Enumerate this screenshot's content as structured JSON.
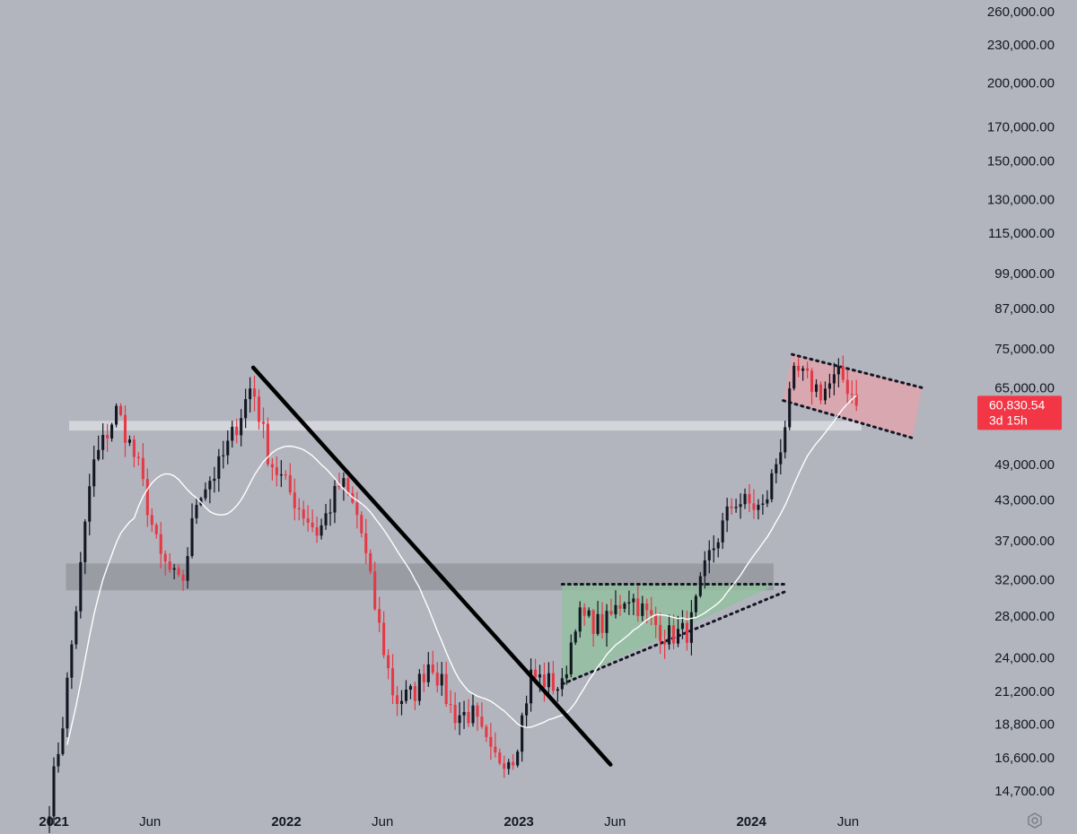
{
  "chart_data": {
    "type": "candlestick",
    "title": "",
    "xlabel": "",
    "ylabel": "",
    "scale": "log",
    "ylim": [
      14000,
      275000
    ],
    "x_ticks": [
      {
        "label": "2021",
        "date": "2021-01-01",
        "bold": true
      },
      {
        "label": "Jun",
        "date": "2021-06-01",
        "bold": false
      },
      {
        "label": "2022",
        "date": "2022-01-01",
        "bold": true
      },
      {
        "label": "Jun",
        "date": "2022-06-01",
        "bold": false
      },
      {
        "label": "2023",
        "date": "2023-01-01",
        "bold": true
      },
      {
        "label": "Jun",
        "date": "2023-06-01",
        "bold": false
      },
      {
        "label": "2024",
        "date": "2024-01-01",
        "bold": true
      },
      {
        "label": "Jun",
        "date": "2024-06-01",
        "bold": false
      }
    ],
    "y_ticks": [
      {
        "label": "260,000.00",
        "value": 260000
      },
      {
        "label": "230,000.00",
        "value": 230000
      },
      {
        "label": "200,000.00",
        "value": 200000
      },
      {
        "label": "170,000.00",
        "value": 170000
      },
      {
        "label": "150,000.00",
        "value": 150000
      },
      {
        "label": "130,000.00",
        "value": 130000
      },
      {
        "label": "115,000.00",
        "value": 115000
      },
      {
        "label": "99,000.00",
        "value": 99000
      },
      {
        "label": "87,000.00",
        "value": 87000
      },
      {
        "label": "75,000.00",
        "value": 75000
      },
      {
        "label": "65,000.00",
        "value": 65000
      },
      {
        "label": "49,000.00",
        "value": 49000
      },
      {
        "label": "43,000.00",
        "value": 43000
      },
      {
        "label": "37,000.00",
        "value": 37000
      },
      {
        "label": "32,000.00",
        "value": 32000
      },
      {
        "label": "28,000.00",
        "value": 28000
      },
      {
        "label": "24,000.00",
        "value": 24000
      },
      {
        "label": "21,200.00",
        "value": 21200
      },
      {
        "label": "18,800.00",
        "value": 18800
      },
      {
        "label": "16,600.00",
        "value": 16600
      },
      {
        "label": "14,700.00",
        "value": 14700
      }
    ],
    "current_price": {
      "value": 60830.54,
      "label": "60,830.54",
      "countdown": "3d 15h"
    },
    "key_points": [
      {
        "date": "2020-12-25",
        "close": 14000
      },
      {
        "date": "2021-01-15",
        "close": 19000
      },
      {
        "date": "2021-02-10",
        "close": 32000
      },
      {
        "date": "2021-03-01",
        "close": 48000
      },
      {
        "date": "2021-04-10",
        "close": 60000
      },
      {
        "date": "2021-05-15",
        "close": 48000
      },
      {
        "date": "2021-06-15",
        "close": 35000
      },
      {
        "date": "2021-07-20",
        "close": 31000
      },
      {
        "date": "2021-08-15",
        "close": 44000
      },
      {
        "date": "2021-09-15",
        "close": 48000
      },
      {
        "date": "2021-10-10",
        "close": 55000
      },
      {
        "date": "2021-11-08",
        "close": 66000
      },
      {
        "date": "2021-12-05",
        "close": 50000
      },
      {
        "date": "2022-01-20",
        "close": 42000
      },
      {
        "date": "2022-02-20",
        "close": 38000
      },
      {
        "date": "2022-03-28",
        "close": 46000
      },
      {
        "date": "2022-04-25",
        "close": 40000
      },
      {
        "date": "2022-05-20",
        "close": 29000
      },
      {
        "date": "2022-06-20",
        "close": 20500
      },
      {
        "date": "2022-07-20",
        "close": 21000
      },
      {
        "date": "2022-08-15",
        "close": 24000
      },
      {
        "date": "2022-09-20",
        "close": 19500
      },
      {
        "date": "2022-10-20",
        "close": 19500
      },
      {
        "date": "2022-11-20",
        "close": 16500
      },
      {
        "date": "2022-12-25",
        "close": 16800
      },
      {
        "date": "2023-01-20",
        "close": 22500
      },
      {
        "date": "2023-03-10",
        "close": 21500
      },
      {
        "date": "2023-04-01",
        "close": 28000
      },
      {
        "date": "2023-05-15",
        "close": 27000
      },
      {
        "date": "2023-06-20",
        "close": 30500
      },
      {
        "date": "2023-08-20",
        "close": 26000
      },
      {
        "date": "2023-09-25",
        "close": 26500
      },
      {
        "date": "2023-10-25",
        "close": 34500
      },
      {
        "date": "2023-12-05",
        "close": 43000
      },
      {
        "date": "2024-01-20",
        "close": 41500
      },
      {
        "date": "2024-02-15",
        "close": 52000
      },
      {
        "date": "2024-03-10",
        "close": 69000
      },
      {
        "date": "2024-04-20",
        "close": 64000
      },
      {
        "date": "2024-05-20",
        "close": 68000
      },
      {
        "date": "2024-06-20",
        "close": 60830
      }
    ],
    "moving_average": {
      "visible": true,
      "color": "#ffffff"
    },
    "zones": [
      {
        "name": "resistance-zone",
        "from": "2021-01-25",
        "to": "2024-06-22",
        "low": 55500,
        "high": 57500,
        "color": "#d9dbe0"
      },
      {
        "name": "support-zone",
        "from": "2021-01-20",
        "to": "2024-02-05",
        "low": 30800,
        "high": 34000,
        "color": "#9598a0"
      }
    ],
    "trendlines": [
      {
        "name": "downtrend-line",
        "from": {
          "date": "2021-11-10",
          "value": 70000
        },
        "to": {
          "date": "2023-05-25",
          "value": 16200
        }
      }
    ],
    "patterns": [
      {
        "name": "ascending-triangle",
        "color": "#8fc19c",
        "points": [
          {
            "date": "2023-03-10",
            "value": 31500
          },
          {
            "date": "2024-02-10",
            "value": 31500
          },
          {
            "date": "2023-03-10",
            "value": 21800
          }
        ]
      },
      {
        "name": "descending-channel",
        "color": "#e6a3ab",
        "points": [
          {
            "date": "2024-03-05",
            "value": 73500
          },
          {
            "date": "2024-09-25",
            "value": 65000
          },
          {
            "date": "2024-09-10",
            "value": 54000
          },
          {
            "date": "2024-02-20",
            "value": 62000
          }
        ]
      }
    ],
    "colors": {
      "up": "#131722",
      "down": "#e53946",
      "background": "#b2b5be"
    }
  }
}
